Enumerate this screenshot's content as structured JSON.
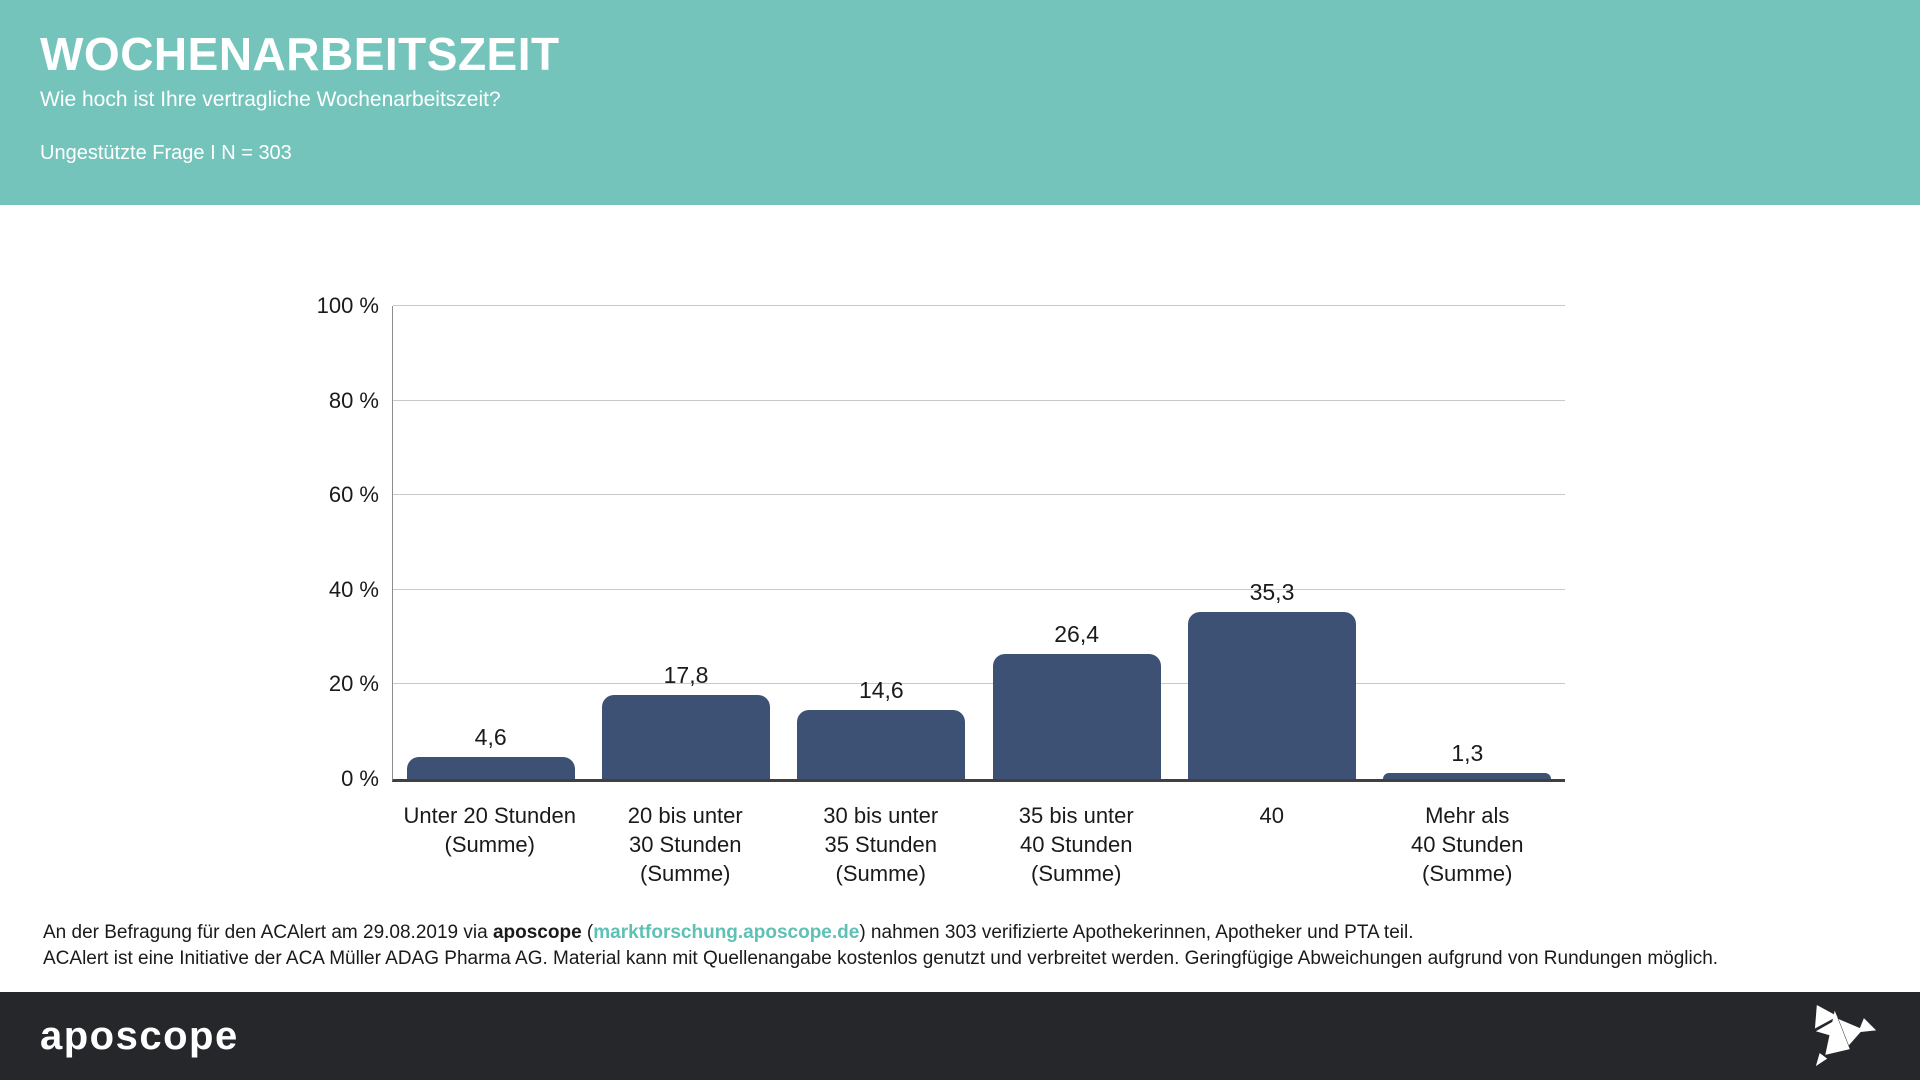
{
  "header": {
    "title": "WOCHENARBEITSZEIT",
    "subtitle": "Wie hoch ist Ihre vertragliche Wochenarbeitszeit?",
    "note": "Ungestützte Frage I N = 303"
  },
  "chart_data": {
    "type": "bar",
    "categories": [
      "Unter 20 Stunden\n(Summe)",
      "20 bis unter\n30 Stunden\n(Summe)",
      "30 bis unter\n35 Stunden\n(Summe)",
      "35 bis unter\n40 Stunden\n(Summe)",
      "40",
      "Mehr als\n40 Stunden\n(Summe)"
    ],
    "values": [
      4.6,
      17.8,
      14.6,
      26.4,
      35.3,
      1.3
    ],
    "value_labels": [
      "4,6",
      "17,8",
      "14,6",
      "26,4",
      "35,3",
      "1,3"
    ],
    "title": "",
    "xlabel": "",
    "ylabel": "",
    "ylim": [
      0,
      100
    ],
    "grid": true,
    "legend": "none",
    "yticks": [
      {
        "value": 0,
        "label": "0 %"
      },
      {
        "value": 20,
        "label": "20 %"
      },
      {
        "value": 40,
        "label": "40 %"
      },
      {
        "value": 60,
        "label": "60 %"
      },
      {
        "value": 80,
        "label": "80 %"
      },
      {
        "value": 100,
        "label": "100 %"
      }
    ],
    "bar_color": "#3d5174"
  },
  "footer": {
    "line1": {
      "prefix": "An der Befragung für den ACAlert am 29.08.2019 via ",
      "brand": "aposcope",
      "open_paren": " (",
      "link": "marktforschung.aposcope.de",
      "suffix": ") nahmen 303 verifizierte Apothekerinnen, Apotheker und PTA teil."
    },
    "line2": "ACAlert ist eine Initiative der ACA Müller ADAG Pharma AG. Material kann mit Quellenangabe kostenlos genutzt und verbreitet werden. Geringfügige Abweichungen aufgrund von Rundungen möglich."
  },
  "brandbar": {
    "logo_text": "aposcope",
    "logo_icon": "origami-bird-icon"
  },
  "colors": {
    "header_bg": "#74c4bc",
    "bar": "#3d5174",
    "brandbar_bg": "#26272b",
    "link": "#5fc0b5"
  }
}
